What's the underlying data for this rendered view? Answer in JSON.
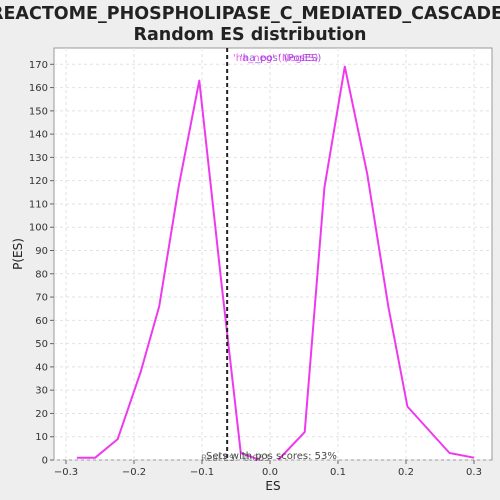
{
  "chart_data": {
    "type": "line",
    "title_lines": [
      "REACTOME_PHOSPHOLIPASE_C_MEDIATED_CASCADE:",
      "Random ES distribution"
    ],
    "xlabel": "ES",
    "ylabel": "P(ES)",
    "xlim": [
      -0.3,
      0.3
    ],
    "ylim": [
      0,
      177
    ],
    "x_ticks": [
      -0.3,
      -0.2,
      -0.1,
      0.0,
      0.1,
      0.2,
      0.3
    ],
    "x_tick_labels": [
      "−0.3",
      "−0.2",
      "−0.1",
      "0.0",
      "0.1",
      "0.2",
      "0.3"
    ],
    "y_ticks": [
      0,
      10,
      20,
      30,
      40,
      50,
      60,
      70,
      80,
      90,
      100,
      110,
      120,
      130,
      140,
      150,
      160,
      170
    ],
    "grid": true,
    "legend_text": "'ha_neg' (NegES)",
    "legend_text_2": "'ha_pos' (PosES)",
    "annotation_bottom": "Sets with pos scores: 53%",
    "annotation_bottom_2": "Real ES: -0.063",
    "observed_es": -0.063,
    "series": [
      {
        "color": "#ee3aee",
        "x": [
          -0.284,
          -0.257,
          -0.224,
          -0.19,
          -0.163,
          -0.134,
          -0.104,
          -0.071,
          -0.043,
          -0.015
        ],
        "y": [
          1,
          1,
          9,
          38,
          66,
          118,
          163,
          75,
          3,
          0
        ]
      },
      {
        "color": "#ee3aee",
        "x": [
          0.012,
          0.051,
          0.08,
          0.11,
          0.143,
          0.174,
          0.202,
          0.264,
          0.3
        ],
        "y": [
          0,
          12,
          117,
          169,
          123,
          66,
          23,
          3,
          1
        ]
      }
    ]
  }
}
